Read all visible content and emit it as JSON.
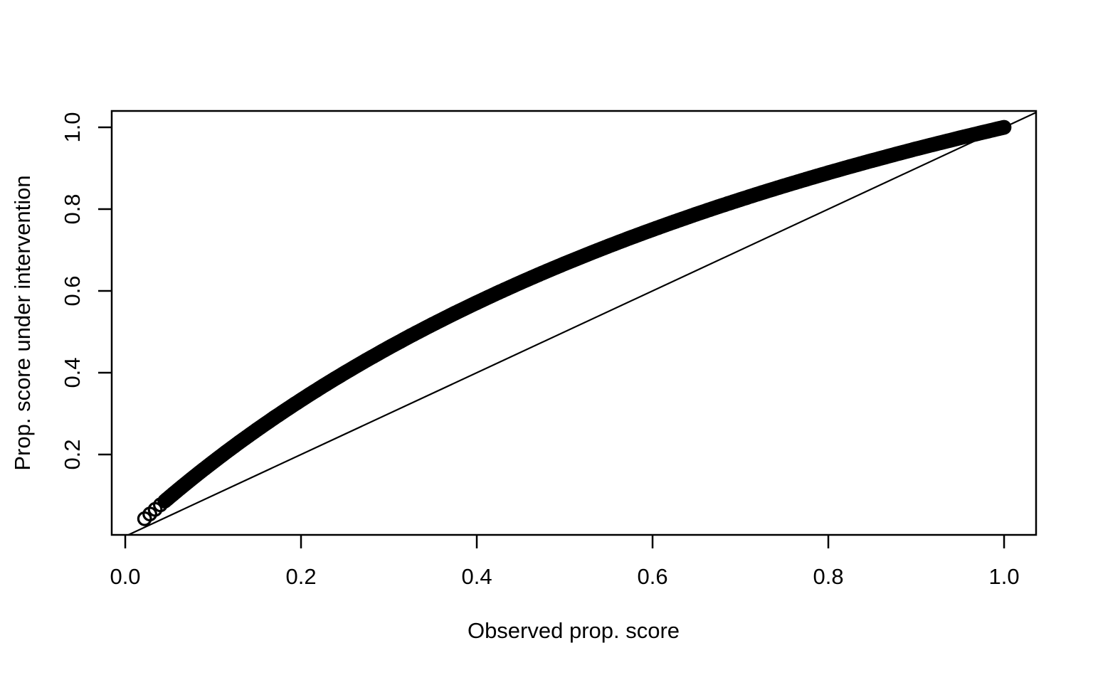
{
  "chart_data": {
    "type": "scatter",
    "title": "",
    "xlabel": "Observed prop. score",
    "ylabel": "Prop. score under intervention",
    "xlim": [
      -0.0154,
      1.0364
    ],
    "ylim": [
      0.0035,
      1.04
    ],
    "x_tick_values": [
      0.0,
      0.2,
      0.4,
      0.6,
      0.8,
      1.0
    ],
    "x_tick_labels": [
      "0.0",
      "0.2",
      "0.4",
      "0.6",
      "0.8",
      "1.0"
    ],
    "y_tick_values": [
      0.2,
      0.4,
      0.6,
      0.8,
      1.0
    ],
    "y_tick_labels": [
      "0.2",
      "0.4",
      "0.6",
      "0.8",
      "1.0"
    ],
    "grid": false,
    "legend": null,
    "point_marker": "open-circle",
    "point_color": "#000000",
    "line_color": "#000000",
    "background_color": "#ffffff",
    "reference_line": {
      "type": "identity",
      "slope": 1,
      "intercept": 0
    },
    "relationship_note": "dense point band follows y = 2x/(1+x) (doubled propensity odds), lying above the y = x identity line",
    "sparse_points": [
      [
        0.022,
        0.043
      ],
      [
        0.028,
        0.0545
      ],
      [
        0.034,
        0.0658
      ],
      [
        0.04,
        0.0769
      ]
    ],
    "curve_points": [
      [
        0.045,
        0.0861
      ],
      [
        0.055,
        0.1043
      ],
      [
        0.065,
        0.1221
      ],
      [
        0.075,
        0.1395
      ],
      [
        0.085,
        0.1567
      ],
      [
        0.1,
        0.1818
      ],
      [
        0.115,
        0.2063
      ],
      [
        0.13,
        0.2301
      ],
      [
        0.15,
        0.2609
      ],
      [
        0.17,
        0.2906
      ],
      [
        0.19,
        0.3193
      ],
      [
        0.21,
        0.3471
      ],
      [
        0.23,
        0.374
      ],
      [
        0.25,
        0.4
      ],
      [
        0.275,
        0.4314
      ],
      [
        0.3,
        0.4615
      ],
      [
        0.325,
        0.4906
      ],
      [
        0.35,
        0.5185
      ],
      [
        0.375,
        0.5455
      ],
      [
        0.4,
        0.5714
      ],
      [
        0.425,
        0.5965
      ],
      [
        0.45,
        0.6207
      ],
      [
        0.475,
        0.6441
      ],
      [
        0.5,
        0.6667
      ],
      [
        0.525,
        0.6885
      ],
      [
        0.55,
        0.7097
      ],
      [
        0.575,
        0.7302
      ],
      [
        0.6,
        0.75
      ],
      [
        0.625,
        0.7692
      ],
      [
        0.65,
        0.7879
      ],
      [
        0.675,
        0.806
      ],
      [
        0.7,
        0.8235
      ],
      [
        0.725,
        0.8406
      ],
      [
        0.75,
        0.8571
      ],
      [
        0.775,
        0.8732
      ],
      [
        0.8,
        0.8889
      ],
      [
        0.825,
        0.9041
      ],
      [
        0.85,
        0.9189
      ],
      [
        0.875,
        0.9333
      ],
      [
        0.9,
        0.9474
      ],
      [
        0.925,
        0.961
      ],
      [
        0.95,
        0.9744
      ],
      [
        0.975,
        0.9873
      ],
      [
        1.0,
        1.0
      ]
    ]
  }
}
